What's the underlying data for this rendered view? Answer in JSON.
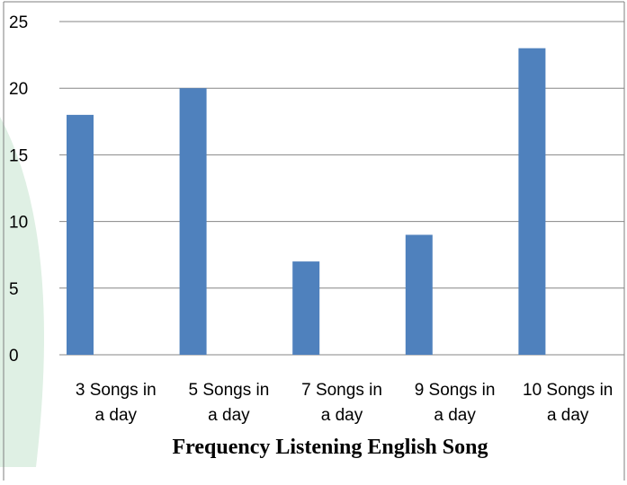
{
  "chart_data": {
    "type": "bar",
    "title": "",
    "xlabel": "Frequency Listening English Song",
    "ylabel": "",
    "categories": [
      [
        "3 Songs in",
        "a day"
      ],
      [
        "5 Songs in",
        "a day"
      ],
      [
        "7 Songs in",
        "a day"
      ],
      [
        "9 Songs in",
        "a day"
      ],
      [
        "10 Songs in",
        "a day"
      ]
    ],
    "values": [
      18,
      20,
      7,
      9,
      23
    ],
    "ylim": [
      0,
      25
    ],
    "yticks": [
      "0",
      "5",
      "10",
      "15",
      "20",
      "25"
    ],
    "grid": true,
    "legend": "none",
    "colors": {
      "bar": "#4F81BD",
      "grid": "#868686",
      "axis": "#868686",
      "frame": "#7f7f7f",
      "watermark": "#dff0e4"
    }
  }
}
